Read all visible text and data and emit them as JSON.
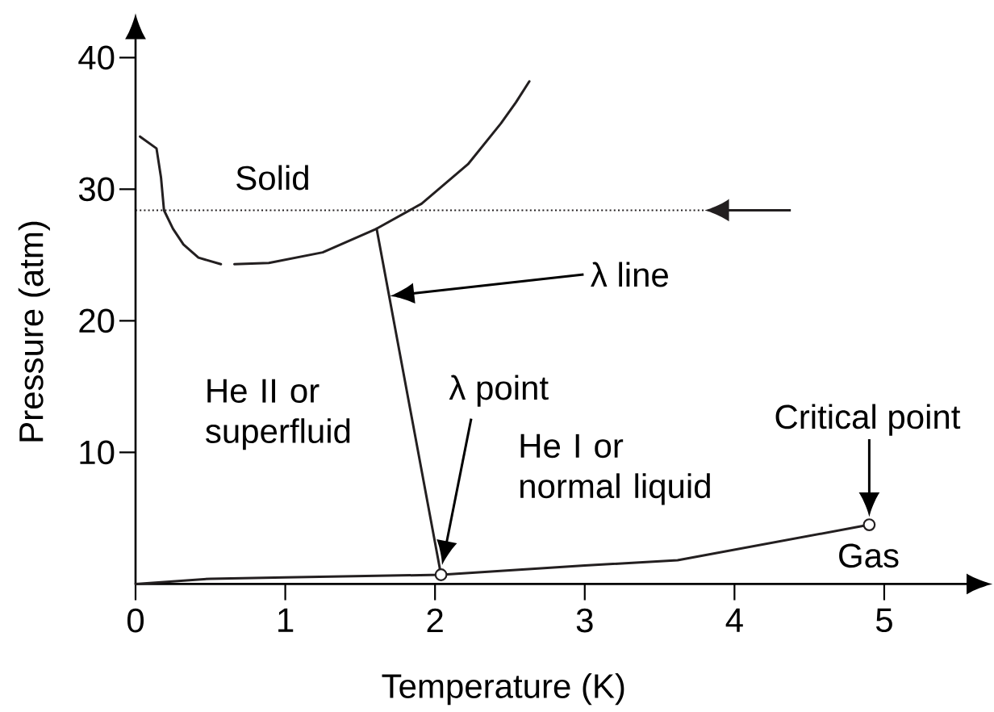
{
  "chart_data": {
    "type": "line",
    "xlabel": "Temperature (K)",
    "ylabel": "Pressure (atm)",
    "xlim": [
      0,
      5.55
    ],
    "ylim": [
      0,
      41.4
    ],
    "xticks": [
      0,
      1,
      2,
      3,
      4,
      5
    ],
    "yticks": [
      10,
      20,
      30,
      40
    ],
    "marker": "none",
    "line_style": "solid",
    "series": [
      {
        "color": "#231f20",
        "x": [
          0.03,
          0.14,
          0.17,
          0.19,
          0.25,
          0.32,
          0.42,
          0.57,
          0.61,
          0.66,
          0.89,
          1.25,
          1.61,
          1.91,
          2.22,
          2.44,
          2.54,
          2.63
        ],
        "values": [
          34.0,
          33.1,
          30.9,
          28.4,
          27.0,
          25.8,
          24.8,
          24.3,
          null,
          24.3,
          24.4,
          25.2,
          27.0,
          28.9,
          31.9,
          35.0,
          36.6,
          38.2
        ]
      },
      {
        "color": "#231f20",
        "x": [
          1.61,
          2.04
        ],
        "values": [
          27.0,
          0.7
        ]
      },
      {
        "color": "#231f20",
        "x": [
          0,
          0.5,
          1,
          2.04,
          3,
          3.62,
          4.9
        ],
        "values": [
          0,
          0.4,
          0.5,
          0.7,
          1.4,
          1.8,
          4.5
        ]
      },
      {
        "type": "scatter",
        "color": "#231f20",
        "marker": "circle",
        "x": [
          2.04,
          4.9
        ],
        "values": [
          0.7,
          4.5
        ]
      }
    ],
    "ref_lines": [
      {
        "axis": "y",
        "value": 28.4,
        "line_style": "dotted",
        "color": "#231f20"
      }
    ],
    "annotations": [
      "Solid",
      "λ line",
      "He II or superfluid",
      "λ point",
      "He I or normal liquid",
      {
        "text": "Critical point",
        "x": 4.9,
        "y": 4.5
      },
      "Gas"
    ]
  }
}
